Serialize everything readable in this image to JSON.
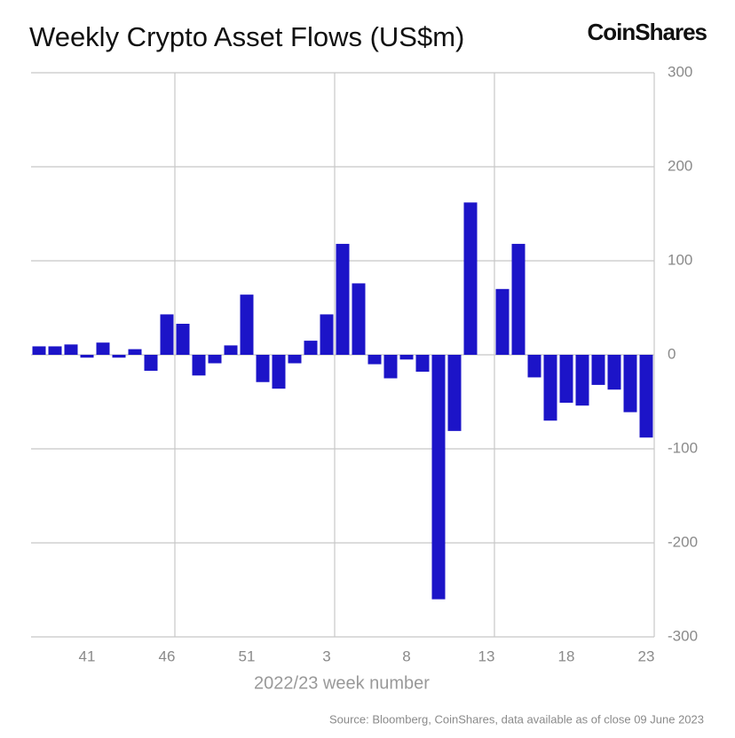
{
  "brand": "CoinShares",
  "source": "Source: Bloomberg, CoinShares, data available as of close 09 June 2023",
  "chart_data": {
    "type": "bar",
    "title": "Weekly Crypto Asset Flows (US$m)",
    "x_label": "2022/23 week number",
    "categories": [
      null,
      null,
      null,
      "41",
      null,
      null,
      null,
      null,
      "46",
      null,
      null,
      null,
      null,
      "51",
      null,
      null,
      null,
      null,
      "3",
      null,
      null,
      null,
      null,
      "8",
      null,
      null,
      null,
      null,
      "13",
      null,
      null,
      null,
      null,
      "18",
      null,
      null,
      null,
      null,
      "23"
    ],
    "values": [
      9,
      9,
      11,
      -3,
      13,
      -3,
      6,
      -17,
      43,
      33,
      -22,
      -9,
      10,
      64,
      -29,
      -36,
      -9,
      15,
      43,
      118,
      76,
      -10,
      -25,
      -5,
      -18,
      -260,
      -81,
      162,
      0,
      70,
      118,
      -24,
      -70,
      -51,
      -54,
      -32,
      -37,
      -61,
      -88
    ],
    "color": "#1c14c8",
    "ylim": [
      -300,
      300
    ],
    "yticks": [
      -300,
      -200,
      -100,
      0,
      100,
      200,
      300
    ],
    "grid": true,
    "y_axis_side": "right"
  }
}
